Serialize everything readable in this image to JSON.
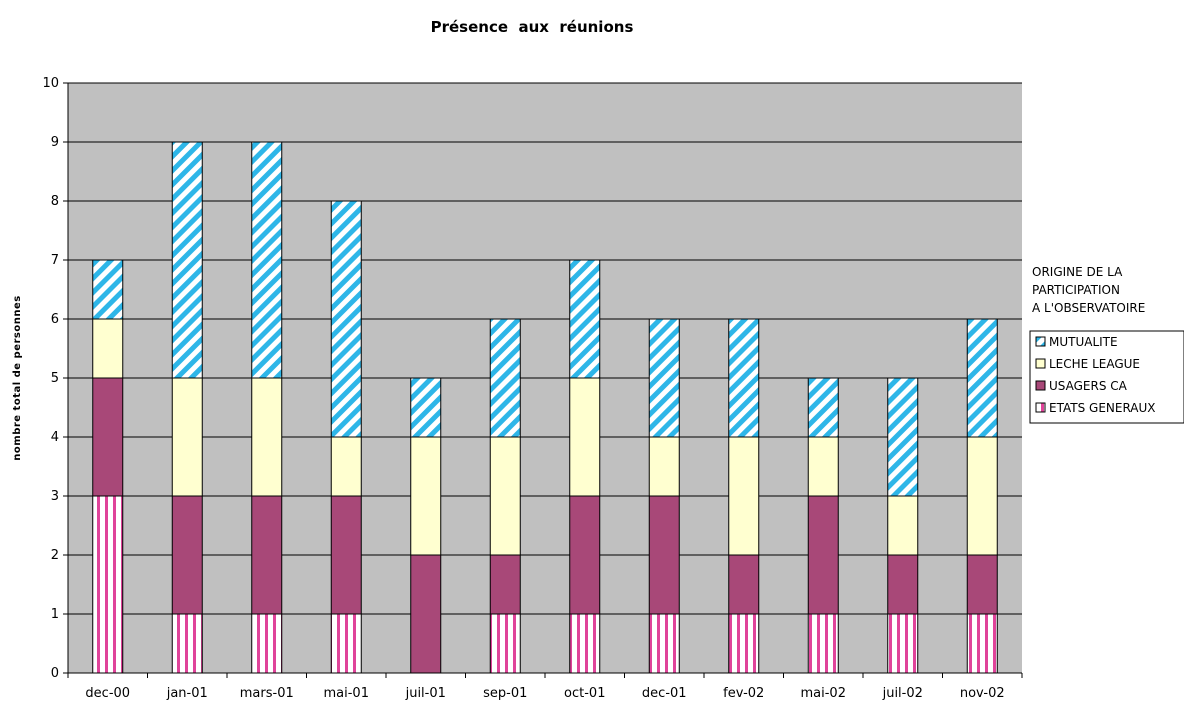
{
  "chart_data": {
    "type": "bar",
    "stacked": true,
    "title": "Présence  aux  réunions",
    "ylabel": "nombre total de personnes",
    "xlabel": "",
    "ylim": [
      0,
      10
    ],
    "yticks": [
      0,
      1,
      2,
      3,
      4,
      5,
      6,
      7,
      8,
      9,
      10
    ],
    "grid": true,
    "legend_position": "right",
    "legend_title": [
      "ORIGINE DE LA",
      "PARTICIPATION",
      "A L'OBSERVATOIRE"
    ],
    "categories": [
      "dec-00",
      "jan-01",
      "mars-01",
      "mai-01",
      "juil-01",
      "sep-01",
      "oct-01",
      "dec-01",
      "fev-02",
      "mai-02",
      "juil-02",
      "nov-02"
    ],
    "series": [
      {
        "name": "ETATS GENERAUX",
        "values": [
          3,
          1,
          1,
          1,
          0,
          1,
          1,
          1,
          1,
          1,
          1,
          1
        ],
        "pattern": "vertical-stripes",
        "color": "#e0439a"
      },
      {
        "name": "USAGERS CA",
        "values": [
          2,
          2,
          2,
          2,
          2,
          1,
          2,
          2,
          1,
          2,
          1,
          1
        ],
        "pattern": "solid",
        "color": "#a84878"
      },
      {
        "name": "LECHE LEAGUE",
        "values": [
          1,
          2,
          2,
          1,
          2,
          2,
          2,
          1,
          2,
          1,
          1,
          2
        ],
        "pattern": "solid",
        "color": "#ffffd0"
      },
      {
        "name": "MUTUALITE",
        "values": [
          1,
          4,
          4,
          4,
          1,
          2,
          2,
          2,
          2,
          1,
          2,
          2
        ],
        "pattern": "diagonal-stripes",
        "color": "#2eb6e8"
      }
    ],
    "legend_order": [
      "MUTUALITE",
      "LECHE LEAGUE",
      "USAGERS CA",
      "ETATS GENERAUX"
    ],
    "plot_background": "#c0c0c0"
  }
}
